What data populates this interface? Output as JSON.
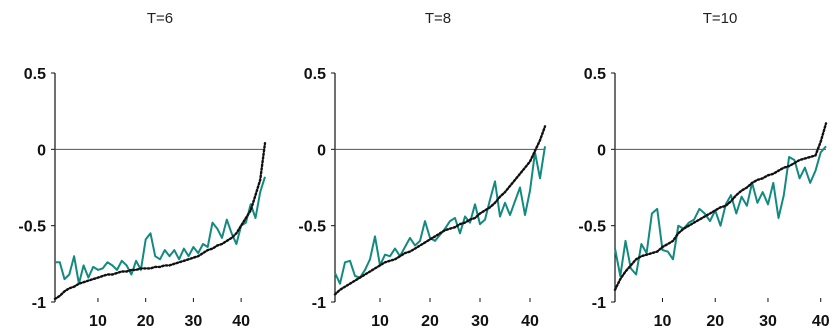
{
  "colors": {
    "series_a": "#138a80",
    "series_b": "#111111",
    "zero_line": "#555555",
    "axis": "#111111"
  },
  "chart_data": [
    {
      "type": "line",
      "title": "T=6",
      "xlim": [
        1,
        45
      ],
      "ylim": [
        -1,
        0.5
      ],
      "yticks": [
        "0.5",
        "0",
        "-0.5",
        "-1"
      ],
      "xticks": [
        "10",
        "20",
        "30",
        "40"
      ],
      "grid": false,
      "x": [
        1,
        2,
        3,
        4,
        5,
        6,
        7,
        8,
        9,
        10,
        11,
        12,
        13,
        14,
        15,
        16,
        17,
        18,
        19,
        20,
        21,
        22,
        23,
        24,
        25,
        26,
        27,
        28,
        29,
        30,
        31,
        32,
        33,
        34,
        35,
        36,
        37,
        38,
        39,
        40,
        41,
        42,
        43,
        44,
        45
      ],
      "series": [
        {
          "values": [
            -0.74,
            -0.74,
            -0.85,
            -0.82,
            -0.7,
            -0.88,
            -0.76,
            -0.84,
            -0.77,
            -0.79,
            -0.78,
            -0.74,
            -0.76,
            -0.79,
            -0.73,
            -0.76,
            -0.82,
            -0.73,
            -0.79,
            -0.59,
            -0.55,
            -0.7,
            -0.72,
            -0.66,
            -0.7,
            -0.66,
            -0.72,
            -0.65,
            -0.7,
            -0.64,
            -0.68,
            -0.62,
            -0.64,
            -0.48,
            -0.52,
            -0.58,
            -0.46,
            -0.55,
            -0.62,
            -0.5,
            -0.48,
            -0.36,
            -0.45,
            -0.28,
            -0.18
          ]
        },
        {
          "values": [
            -0.98,
            -0.96,
            -0.93,
            -0.91,
            -0.9,
            -0.88,
            -0.87,
            -0.86,
            -0.85,
            -0.84,
            -0.83,
            -0.82,
            -0.82,
            -0.81,
            -0.8,
            -0.8,
            -0.79,
            -0.79,
            -0.78,
            -0.78,
            -0.78,
            -0.77,
            -0.77,
            -0.76,
            -0.76,
            -0.75,
            -0.74,
            -0.73,
            -0.72,
            -0.71,
            -0.7,
            -0.68,
            -0.66,
            -0.65,
            -0.63,
            -0.62,
            -0.6,
            -0.58,
            -0.55,
            -0.5,
            -0.45,
            -0.4,
            -0.3,
            -0.2,
            0.04
          ]
        }
      ]
    },
    {
      "type": "line",
      "title": "T=8",
      "xlim": [
        1,
        43
      ],
      "ylim": [
        -1,
        0.5
      ],
      "yticks": [
        "0.5",
        "0",
        "-0.5",
        "-1"
      ],
      "xticks": [
        "10",
        "20",
        "30",
        "40"
      ],
      "grid": false,
      "x": [
        1,
        2,
        3,
        4,
        5,
        6,
        7,
        8,
        9,
        10,
        11,
        12,
        13,
        14,
        15,
        16,
        17,
        18,
        19,
        20,
        21,
        22,
        23,
        24,
        25,
        26,
        27,
        28,
        29,
        30,
        31,
        32,
        33,
        34,
        35,
        36,
        37,
        38,
        39,
        40,
        41,
        42,
        43
      ],
      "series": [
        {
          "values": [
            -0.81,
            -0.88,
            -0.74,
            -0.73,
            -0.83,
            -0.84,
            -0.79,
            -0.72,
            -0.57,
            -0.76,
            -0.69,
            -0.7,
            -0.65,
            -0.7,
            -0.64,
            -0.58,
            -0.63,
            -0.6,
            -0.47,
            -0.58,
            -0.6,
            -0.56,
            -0.52,
            -0.47,
            -0.45,
            -0.55,
            -0.44,
            -0.48,
            -0.36,
            -0.49,
            -0.46,
            -0.33,
            -0.21,
            -0.44,
            -0.35,
            -0.43,
            -0.34,
            -0.25,
            -0.43,
            -0.27,
            -0.02,
            -0.19,
            0.02
          ]
        },
        {
          "values": [
            -0.95,
            -0.92,
            -0.9,
            -0.88,
            -0.86,
            -0.84,
            -0.82,
            -0.8,
            -0.78,
            -0.76,
            -0.74,
            -0.73,
            -0.72,
            -0.7,
            -0.68,
            -0.67,
            -0.65,
            -0.63,
            -0.61,
            -0.59,
            -0.57,
            -0.55,
            -0.53,
            -0.52,
            -0.51,
            -0.49,
            -0.48,
            -0.46,
            -0.45,
            -0.42,
            -0.4,
            -0.38,
            -0.35,
            -0.31,
            -0.28,
            -0.24,
            -0.2,
            -0.16,
            -0.12,
            -0.08,
            -0.01,
            0.06,
            0.15
          ]
        }
      ]
    },
    {
      "type": "line",
      "title": "T=10",
      "xlim": [
        1,
        41
      ],
      "ylim": [
        -1,
        0.5
      ],
      "yticks": [
        "0.5",
        "0",
        "-0.5",
        "-1"
      ],
      "xticks": [
        "10",
        "20",
        "30",
        "40"
      ],
      "grid": false,
      "x": [
        1,
        2,
        3,
        4,
        5,
        6,
        7,
        8,
        9,
        10,
        11,
        12,
        13,
        14,
        15,
        16,
        17,
        18,
        19,
        20,
        21,
        22,
        23,
        24,
        25,
        26,
        27,
        28,
        29,
        30,
        31,
        32,
        33,
        34,
        35,
        36,
        37,
        38,
        39,
        40,
        41
      ],
      "series": [
        {
          "values": [
            -0.65,
            -0.83,
            -0.6,
            -0.78,
            -0.82,
            -0.62,
            -0.68,
            -0.42,
            -0.39,
            -0.66,
            -0.67,
            -0.72,
            -0.5,
            -0.52,
            -0.48,
            -0.46,
            -0.39,
            -0.42,
            -0.47,
            -0.4,
            -0.5,
            -0.36,
            -0.3,
            -0.42,
            -0.31,
            -0.37,
            -0.22,
            -0.35,
            -0.28,
            -0.36,
            -0.22,
            -0.45,
            -0.3,
            -0.05,
            -0.07,
            -0.19,
            -0.12,
            -0.22,
            -0.14,
            -0.02,
            0.02
          ]
        },
        {
          "values": [
            -0.92,
            -0.85,
            -0.8,
            -0.76,
            -0.72,
            -0.7,
            -0.69,
            -0.68,
            -0.67,
            -0.64,
            -0.62,
            -0.6,
            -0.55,
            -0.52,
            -0.5,
            -0.48,
            -0.46,
            -0.44,
            -0.42,
            -0.4,
            -0.38,
            -0.37,
            -0.34,
            -0.3,
            -0.27,
            -0.25,
            -0.22,
            -0.2,
            -0.19,
            -0.17,
            -0.16,
            -0.14,
            -0.12,
            -0.11,
            -0.09,
            -0.07,
            -0.06,
            -0.05,
            -0.04,
            0.05,
            0.17
          ]
        }
      ]
    }
  ]
}
